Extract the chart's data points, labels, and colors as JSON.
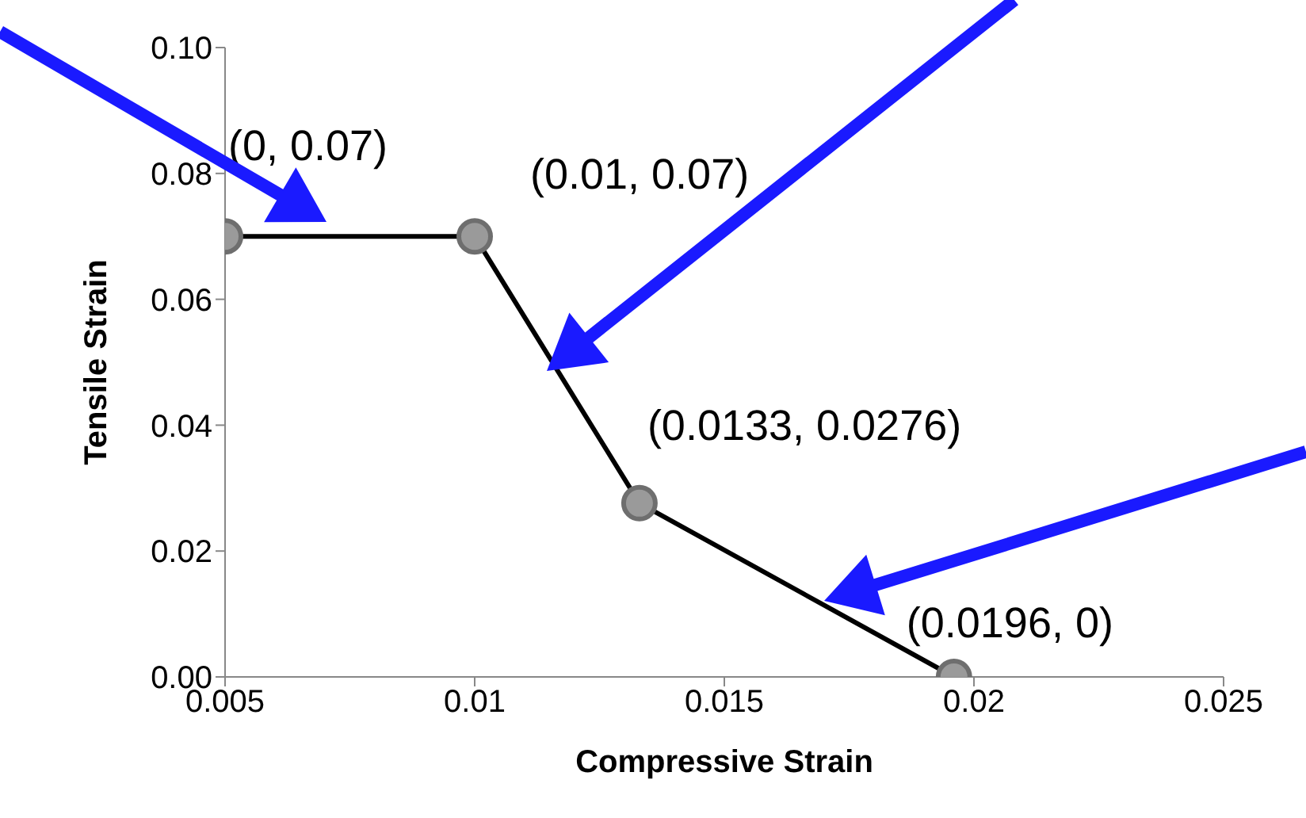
{
  "chart_data": {
    "type": "line",
    "xlabel": "Compressive Strain",
    "ylabel": "Tensile  Strain",
    "x": [
      0.005,
      0.01,
      0.0133,
      0.0196
    ],
    "series": [
      {
        "color": "#000000",
        "values": [
          0.07,
          0.07,
          0.0276,
          0
        ]
      }
    ],
    "xlim": [
      0.005,
      0.025
    ],
    "xticks": [
      0.005,
      0.01,
      0.015,
      0.02,
      0.025
    ],
    "ylim": [
      0,
      0.1
    ],
    "yticks": [
      {
        "value": 0,
        "label": "0.00"
      },
      {
        "value": 0.02,
        "label": "0.02"
      },
      {
        "value": 0.04,
        "label": "0.04"
      },
      {
        "value": 0.06,
        "label": "0.06"
      },
      {
        "value": 0.08,
        "label": "0.08"
      },
      {
        "value": 0.1,
        "label": "0.10"
      }
    ],
    "marker": "circle",
    "line_style": "solid",
    "grid": false,
    "legend": false,
    "annotations": [
      {
        "text": "(0, 0.07)",
        "x": 0.005,
        "y": 0.07
      },
      {
        "text": "(0.01, 0.07)",
        "x": 0.01,
        "y": 0.07
      },
      {
        "text": "(0.0133, 0.0276)",
        "x": 0.0133,
        "y": 0.0276
      },
      {
        "text": "(0.0196, 0)",
        "x": 0.0196,
        "y": 0
      }
    ]
  }
}
